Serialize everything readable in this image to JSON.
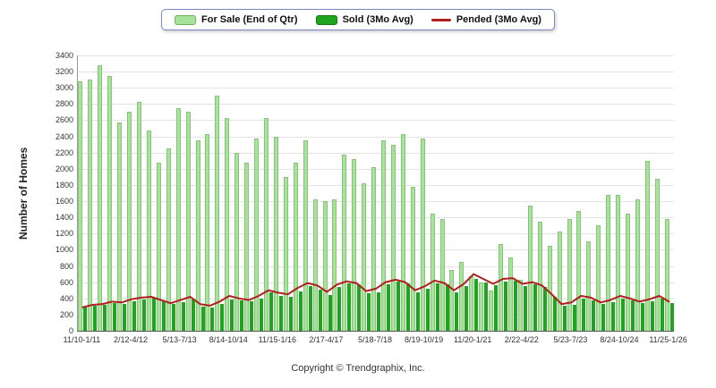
{
  "page": {
    "background": "#ffffff"
  },
  "footer": {
    "copyright": "Copyright © Trendgraphix, Inc."
  },
  "chart_data": {
    "type": "bar+line",
    "title": "",
    "xlabel": "",
    "ylabel": "Number of Homes",
    "ylim": [
      0,
      3400
    ],
    "y_tick_step": 200,
    "y_ticks": [
      0,
      200,
      400,
      600,
      800,
      1000,
      1200,
      1400,
      1600,
      1800,
      2000,
      2200,
      2400,
      2600,
      2800,
      3000,
      3200,
      3400
    ],
    "grid": "horizontal",
    "legend_position": "top-center",
    "quarters_count": 61,
    "x_tick_interval": 5,
    "x_tick_labels": [
      "11/10-1/11",
      "2/12-4/12",
      "5/13-7/13",
      "8/14-10/14",
      "11/15-1/16",
      "2/17-4/17",
      "5/18-7/18",
      "8/19-10/19",
      "11/20-1/21",
      "2/22-4/22",
      "5/23-7/23",
      "8/24-10/24",
      "11/25-1/26"
    ],
    "series": [
      {
        "name": "For Sale (End of Qtr)",
        "type": "bar",
        "color": "#a9e29a",
        "values": [
          3075,
          3100,
          3275,
          3150,
          2575,
          2700,
          2825,
          2475,
          2075,
          2250,
          2750,
          2700,
          2350,
          2425,
          2900,
          2625,
          2200,
          2075,
          2375,
          2625,
          2400,
          1900,
          2075,
          2350,
          1625,
          1600,
          1625,
          2175,
          2125,
          1825,
          2025,
          2350,
          2300,
          2425,
          1775,
          2375,
          1450,
          1375,
          750,
          850,
          675,
          600,
          500,
          1075,
          900,
          625,
          1550,
          1350,
          1050,
          1225,
          1375,
          1475,
          1100,
          1300,
          1675,
          1675,
          1450,
          1625,
          2100,
          1875,
          1375
        ]
      },
      {
        "name": "Sold (3Mo Avg)",
        "type": "bar",
        "color": "#1fa41f",
        "values": [
          300,
          310,
          320,
          340,
          330,
          360,
          390,
          410,
          370,
          330,
          350,
          390,
          300,
          290,
          330,
          390,
          380,
          360,
          400,
          470,
          430,
          420,
          490,
          550,
          510,
          440,
          540,
          590,
          570,
          460,
          480,
          570,
          610,
          580,
          480,
          520,
          590,
          570,
          480,
          550,
          640,
          600,
          560,
          610,
          620,
          550,
          570,
          540,
          420,
          310,
          320,
          400,
          380,
          330,
          350,
          400,
          370,
          340,
          360,
          400,
          340
        ]
      },
      {
        "name": "Pended (3Mo Avg)",
        "type": "line",
        "color": "#b01e1e",
        "values": [
          290,
          320,
          330,
          360,
          350,
          390,
          410,
          420,
          380,
          340,
          380,
          420,
          330,
          310,
          360,
          430,
          400,
          380,
          430,
          500,
          470,
          450,
          530,
          590,
          560,
          480,
          570,
          610,
          590,
          490,
          520,
          600,
          630,
          600,
          500,
          550,
          620,
          590,
          500,
          580,
          700,
          640,
          580,
          640,
          650,
          580,
          600,
          560,
          450,
          330,
          350,
          430,
          410,
          350,
          380,
          430,
          400,
          360,
          390,
          430,
          360
        ]
      }
    ]
  }
}
